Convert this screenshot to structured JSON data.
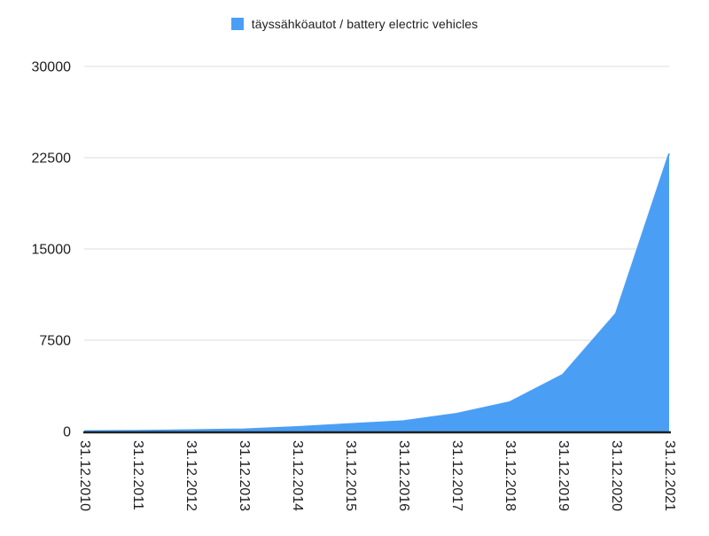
{
  "legend": {
    "label": "täyssähköautot / battery electric vehicles",
    "swatch_icon": "legend-color-swatch"
  },
  "chart_data": {
    "type": "area",
    "title": "",
    "xlabel": "",
    "ylabel": "",
    "categories": [
      "31.12.2010",
      "31.12.2011",
      "31.12.2012",
      "31.12.2013",
      "31.12.2014",
      "31.12.2015",
      "31.12.2016",
      "31.12.2017",
      "31.12.2018",
      "31.12.2019",
      "31.12.2020",
      "31.12.2021"
    ],
    "series": [
      {
        "name": "täyssähköautot / battery electric vehicles",
        "values": [
          23,
          57,
          113,
          176,
          360,
          614,
          844,
          1449,
          2404,
          4661,
          9694,
          22835
        ]
      }
    ],
    "ylim": [
      0,
      30000
    ],
    "yticks": [
      0,
      7500,
      15000,
      22500,
      30000
    ],
    "grid": true,
    "legend_position": "top",
    "x_tick_rotation_deg": 90
  },
  "colors": {
    "background": "#FFFFFF",
    "series_fill": "#4A9FF5",
    "series_line": "#4A9FF5",
    "gridline": "#E8E8E8",
    "axis_line": "#212121",
    "tick_text": "#1F1F1F",
    "legend_text": "#1F1F1F"
  }
}
